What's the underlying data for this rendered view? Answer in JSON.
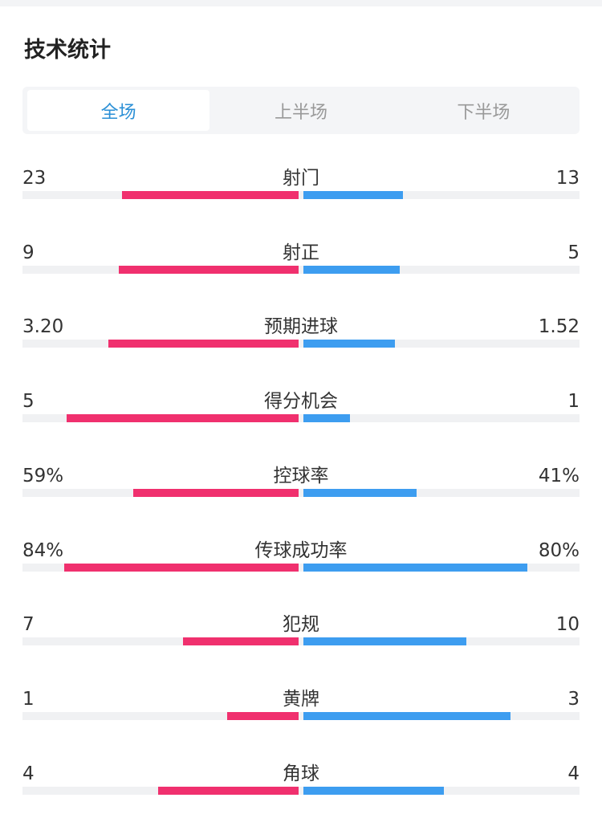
{
  "title": "技术统计",
  "tabs": [
    "全场",
    "上半场",
    "下半场"
  ],
  "active_tab": 0,
  "home_color": "#f0306e",
  "away_color": "#3d9df0",
  "stats": [
    {
      "label": "射门",
      "home": "23",
      "away": "13",
      "home_bar": 64,
      "away_bar": 36
    },
    {
      "label": "射正",
      "home": "9",
      "away": "5",
      "home_bar": 65,
      "away_bar": 35
    },
    {
      "label": "预期进球",
      "home": "3.20",
      "away": "1.52",
      "home_bar": 69,
      "away_bar": 33
    },
    {
      "label": "得分机会",
      "home": "5",
      "away": "1",
      "home_bar": 84,
      "away_bar": 17
    },
    {
      "label": "控球率",
      "home": "59%",
      "away": "41%",
      "home_bar": 60,
      "away_bar": 41
    },
    {
      "label": "传球成功率",
      "home": "84%",
      "away": "80%",
      "home_bar": 85,
      "away_bar": 81
    },
    {
      "label": "犯规",
      "home": "7",
      "away": "10",
      "home_bar": 42,
      "away_bar": 59
    },
    {
      "label": "黄牌",
      "home": "1",
      "away": "3",
      "home_bar": 26,
      "away_bar": 75
    },
    {
      "label": "角球",
      "home": "4",
      "away": "4",
      "home_bar": 51,
      "away_bar": 51
    }
  ]
}
